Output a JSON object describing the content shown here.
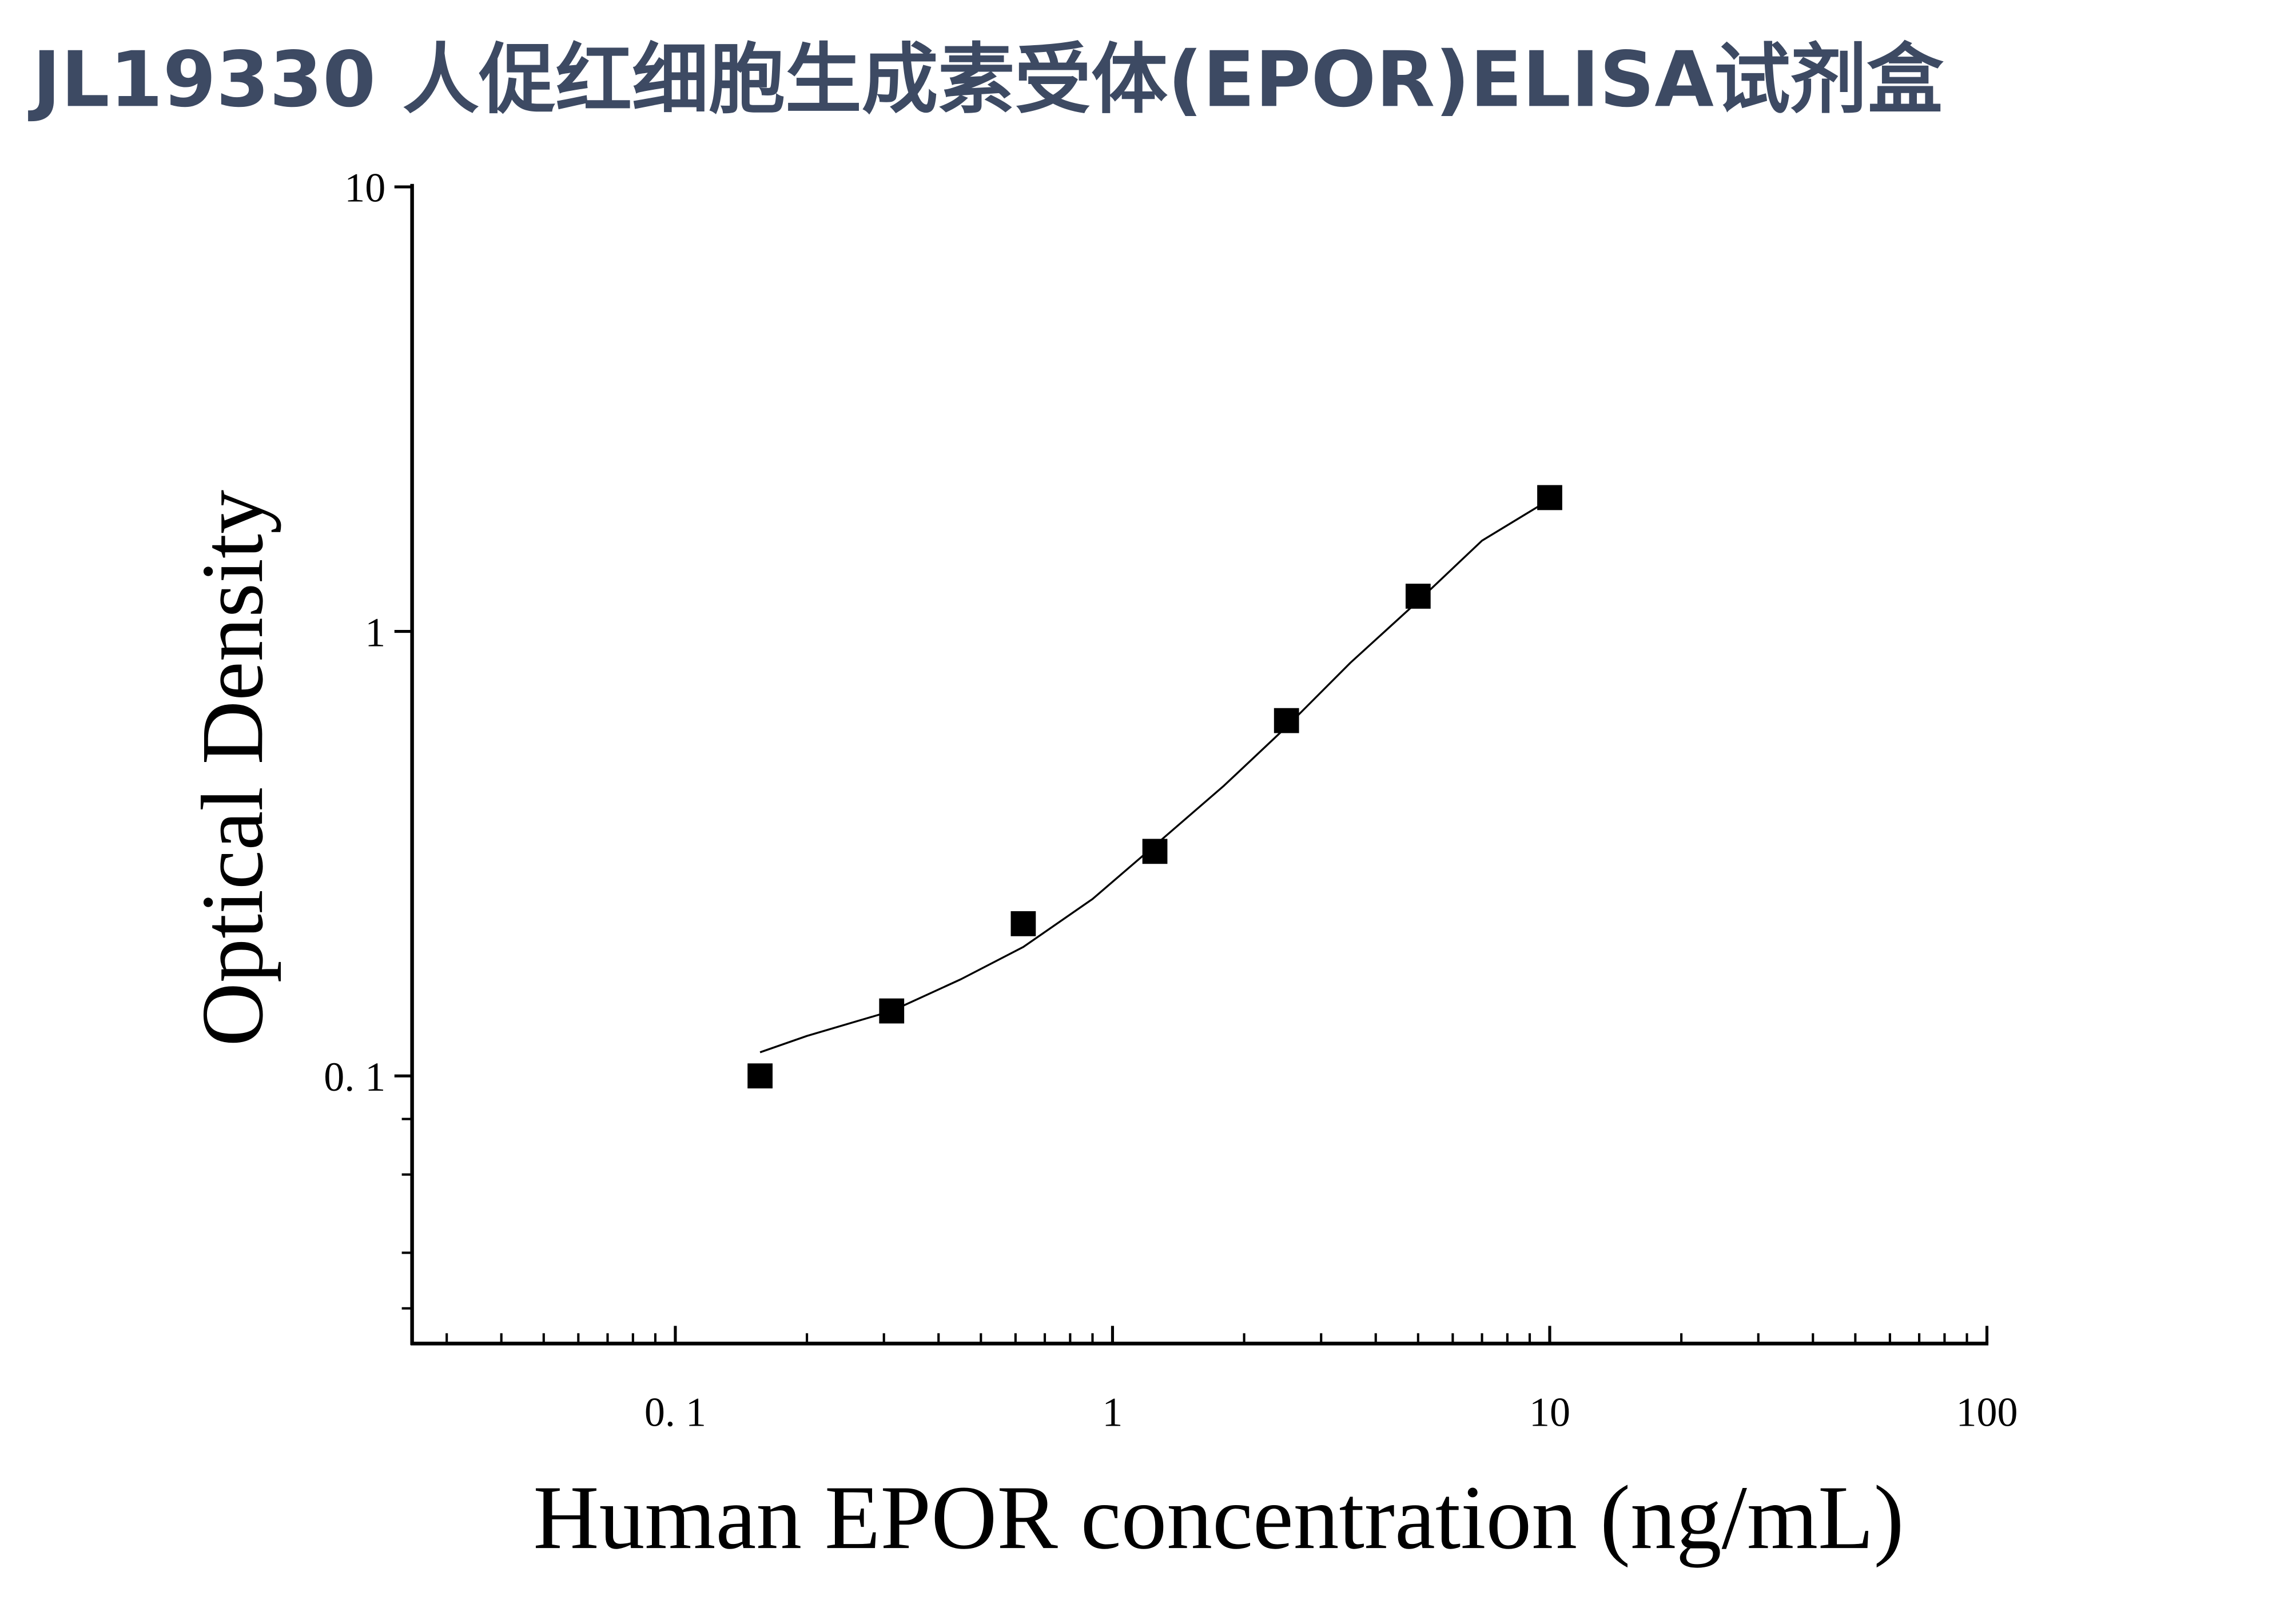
{
  "chart_data": {
    "type": "scatter",
    "title": "JL19330 人促红细胞生成素受体(EPOR)ELISA试剂盒",
    "x_label": "Human EPOR concentration (ng/mL)",
    "y_label": "Optical Density",
    "xscale": "log",
    "yscale": "log",
    "xlim": [
      0.025,
      100
    ],
    "ylim": [
      0.025,
      10
    ],
    "xticks": [
      {
        "value": 0.1,
        "label": "0. 1"
      },
      1,
      10,
      100
    ],
    "yticks": [
      {
        "value": 0.1,
        "label": "0. 1"
      },
      1,
      10
    ],
    "xminorticks": [
      0.03,
      0.04,
      0.05,
      0.06,
      0.07,
      0.08,
      0.09,
      0.2,
      0.3,
      0.4,
      0.5,
      0.6,
      0.7,
      0.8,
      0.9,
      2,
      3,
      4,
      5,
      6,
      7,
      8,
      9,
      20,
      30,
      40,
      50,
      60,
      70,
      80,
      90
    ],
    "yminorticks": [
      0.03,
      0.04,
      0.06,
      0.08
    ],
    "series": [
      {
        "type": "scatter",
        "color": "#000000",
        "x": [
          0.15625,
          0.3125,
          0.625,
          1.25,
          2.5,
          5,
          10
        ],
        "values": [
          0.1,
          0.14,
          0.22,
          0.32,
          0.63,
          1.2,
          2.0
        ]
      },
      {
        "type": "line",
        "color": "#000000",
        "x": [
          0.15625,
          0.2,
          0.3125,
          0.45,
          0.625,
          0.9,
          1.25,
          1.8,
          2.5,
          3.5,
          5,
          7,
          10
        ],
        "values": [
          0.113,
          0.123,
          0.14,
          0.165,
          0.195,
          0.25,
          0.33,
          0.45,
          0.61,
          0.85,
          1.17,
          1.6,
          1.98
        ]
      }
    ]
  }
}
